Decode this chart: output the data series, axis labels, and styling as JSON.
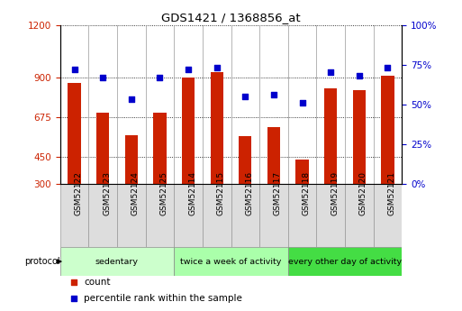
{
  "title": "GDS1421 / 1368856_at",
  "categories": [
    "GSM52122",
    "GSM52123",
    "GSM52124",
    "GSM52125",
    "GSM52114",
    "GSM52115",
    "GSM52116",
    "GSM52117",
    "GSM52118",
    "GSM52119",
    "GSM52120",
    "GSM52121"
  ],
  "count_values": [
    870,
    700,
    575,
    700,
    900,
    930,
    570,
    620,
    435,
    840,
    830,
    910
  ],
  "percentile_values": [
    72,
    67,
    53,
    67,
    72,
    73,
    55,
    56,
    51,
    70,
    68,
    73
  ],
  "bar_color": "#cc2200",
  "dot_color": "#0000cc",
  "ylim_left": [
    300,
    1200
  ],
  "ylim_right": [
    0,
    100
  ],
  "yticks_left": [
    300,
    450,
    675,
    900,
    1200
  ],
  "yticks_right": [
    0,
    25,
    50,
    75,
    100
  ],
  "ytick_labels_right": [
    "0%",
    "25%",
    "50%",
    "75%",
    "100%"
  ],
  "groups": [
    {
      "label": "sedentary",
      "start": 0,
      "end": 4,
      "color": "#ccffcc"
    },
    {
      "label": "twice a week of activity",
      "start": 4,
      "end": 8,
      "color": "#aaffaa"
    },
    {
      "label": "every other day of activity",
      "start": 8,
      "end": 12,
      "color": "#44dd44"
    }
  ],
  "protocol_label": "protocol",
  "legend_count": "count",
  "legend_percentile": "percentile rank within the sample",
  "bar_width": 0.45,
  "base_value": 300
}
